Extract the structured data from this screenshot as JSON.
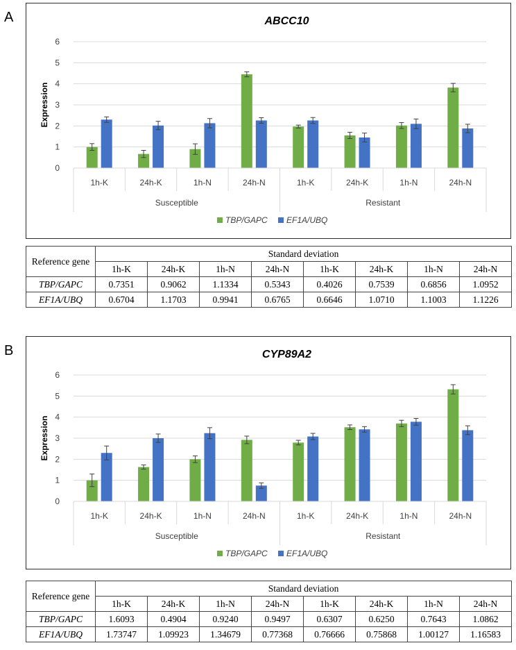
{
  "panels": [
    {
      "letter": "A",
      "chart_data": {
        "type": "bar",
        "title": "ABCC10",
        "ylabel": "Expression",
        "xlabel": "",
        "ylim": [
          0,
          6
        ],
        "yticks": [
          "0",
          "1",
          "2",
          "3",
          "4",
          "5",
          "6"
        ],
        "categories": [
          "1h-K",
          "24h-K",
          "1h-N",
          "24h-N",
          "1h-K",
          "24h-K",
          "1h-N",
          "24h-N"
        ],
        "groups": [
          {
            "label": "Susceptible",
            "span": [
              0,
              4
            ]
          },
          {
            "label": "Resistant",
            "span": [
              4,
              8
            ]
          }
        ],
        "series": [
          {
            "name": "TBP/GAPC",
            "color": "#70ad47",
            "values": [
              1.0,
              0.67,
              0.9,
              4.45,
              1.97,
              1.55,
              2.02,
              3.82
            ],
            "errors": [
              0.16,
              0.17,
              0.25,
              0.12,
              0.07,
              0.15,
              0.14,
              0.2
            ]
          },
          {
            "name": "EF1A/UBQ",
            "color": "#4472c4",
            "values": [
              2.3,
              2.02,
              2.13,
              2.26,
              2.26,
              1.45,
              2.1,
              1.88
            ],
            "errors": [
              0.13,
              0.2,
              0.22,
              0.13,
              0.14,
              0.21,
              0.23,
              0.2
            ]
          }
        ],
        "legend_position": "bottom"
      },
      "sd_table": {
        "ref_header": "Reference gene",
        "sd_header": "Standard deviation",
        "columns": [
          "1h-K",
          "24h-K",
          "1h-N",
          "24h-N",
          "1h-K",
          "24h-K",
          "1h-N",
          "24h-N"
        ],
        "rows": [
          {
            "label": "TBP/GAPC",
            "values": [
              "0.7351",
              "0.9062",
              "1.1334",
              "0.5343",
              "0.4026",
              "0.7539",
              "0.6856",
              "1.0952"
            ]
          },
          {
            "label": "EF1A/UBQ",
            "values": [
              "0.6704",
              "1.1703",
              "0.9941",
              "0.6765",
              "0.6646",
              "1.0710",
              "1.1003",
              "1.1226"
            ]
          }
        ]
      }
    },
    {
      "letter": "B",
      "chart_data": {
        "type": "bar",
        "title": "CYP89A2",
        "ylabel": "Expression",
        "xlabel": "",
        "ylim": [
          0,
          6
        ],
        "yticks": [
          "0",
          "1",
          "2",
          "3",
          "4",
          "5",
          "6"
        ],
        "categories": [
          "1h-K",
          "24h-K",
          "1h-N",
          "24h-N",
          "1h-K",
          "24h-K",
          "1h-N",
          "24h-N"
        ],
        "groups": [
          {
            "label": "Susceptible",
            "span": [
              0,
              4
            ]
          },
          {
            "label": "Resistant",
            "span": [
              4,
              8
            ]
          }
        ],
        "series": [
          {
            "name": "TBP/GAPC",
            "color": "#70ad47",
            "values": [
              1.0,
              1.63,
              2.0,
              2.92,
              2.79,
              3.52,
              3.7,
              5.32
            ],
            "errors": [
              0.3,
              0.1,
              0.16,
              0.18,
              0.11,
              0.11,
              0.15,
              0.22
            ]
          },
          {
            "name": "EF1A/UBQ",
            "color": "#4472c4",
            "values": [
              2.3,
              3.0,
              3.24,
              0.75,
              3.08,
              3.42,
              3.78,
              3.38
            ],
            "errors": [
              0.33,
              0.2,
              0.26,
              0.13,
              0.15,
              0.13,
              0.16,
              0.21
            ]
          }
        ],
        "legend_position": "bottom"
      },
      "sd_table": {
        "ref_header": "Reference gene",
        "sd_header": "Standard deviation",
        "columns": [
          "1h-K",
          "24h-K",
          "1h-N",
          "24h-N",
          "1h-K",
          "24h-K",
          "1h-N",
          "24h-N"
        ],
        "rows": [
          {
            "label": "TBP/GAPC",
            "values": [
              "1.6093",
              "0.4904",
              "0.9240",
              "0.9497",
              "0.6307",
              "0.6250",
              "0.7643",
              "1.0862"
            ]
          },
          {
            "label": "EF1A/UBQ",
            "values": [
              "1.73747",
              "1.09923",
              "1.34679",
              "0.77368",
              "0.76666",
              "0.75868",
              "1.00127",
              "1.16583"
            ]
          }
        ]
      }
    }
  ]
}
